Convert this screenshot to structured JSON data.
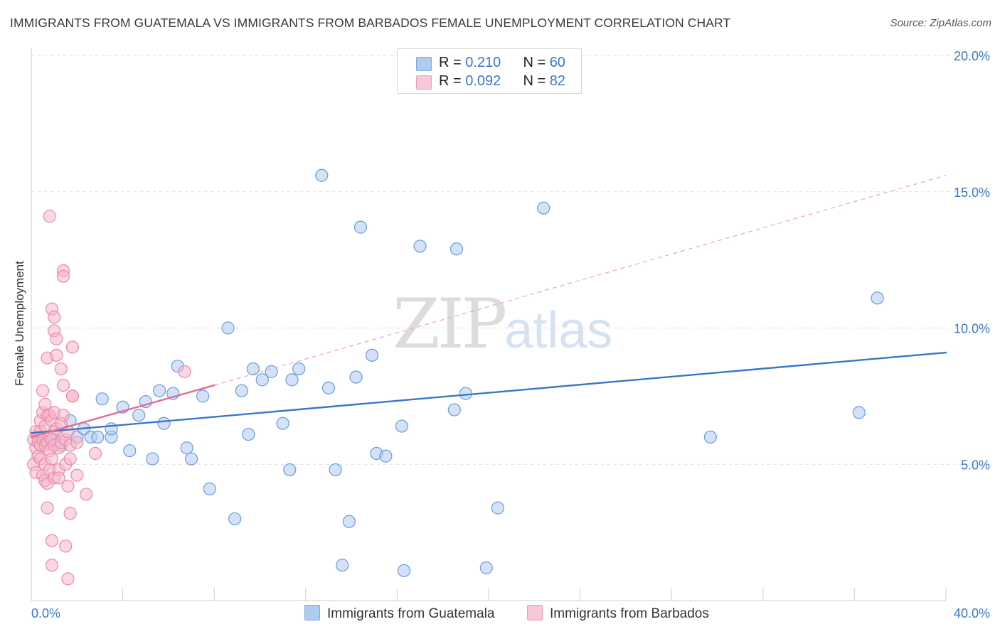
{
  "title": "IMMIGRANTS FROM GUATEMALA VS IMMIGRANTS FROM BARBADOS FEMALE UNEMPLOYMENT CORRELATION CHART",
  "source": "Source: ZipAtlas.com",
  "watermark": {
    "zip": "ZIP",
    "atlas": "atlas"
  },
  "colors": {
    "blue": "#3a77c8",
    "blue_fill": "#aecbf0",
    "pink": "#e86a93",
    "pink_fill": "#f5b7cb",
    "grid": "#dddddd"
  },
  "legend": {
    "rows": [
      {
        "r_label": "R = ",
        "r_value": "0.210",
        "n_label": "N = ",
        "n_value": "60"
      },
      {
        "r_label": "R = ",
        "r_value": "0.092",
        "n_label": "N = ",
        "n_value": "82"
      }
    ]
  },
  "chart_data": {
    "type": "scatter",
    "title": "IMMIGRANTS FROM GUATEMALA VS IMMIGRANTS FROM BARBADOS FEMALE UNEMPLOYMENT CORRELATION CHART",
    "xlabel": "",
    "ylabel": "Female Unemployment",
    "xlim": [
      0,
      40
    ],
    "ylim": [
      0,
      20
    ],
    "x_tick_labels": [
      "0.0%",
      "40.0%"
    ],
    "y_ticks": [
      5,
      10,
      15,
      20
    ],
    "y_tick_labels": [
      "5.0%",
      "10.0%",
      "15.0%",
      "20.0%"
    ],
    "series": [
      {
        "name": "Immigrants from Guatemala",
        "color": "blue",
        "r": 0.21,
        "n": 60,
        "trend": {
          "x0": 0,
          "y0": 6.15,
          "x1": 40,
          "y1": 9.1,
          "style": "solid"
        },
        "points": [
          [
            1.0,
            6.2
          ],
          [
            1.3,
            5.7
          ],
          [
            1.7,
            6.6
          ],
          [
            2.0,
            6.0
          ],
          [
            2.3,
            6.3
          ],
          [
            2.6,
            6.0
          ],
          [
            2.9,
            6.0
          ],
          [
            3.1,
            7.4
          ],
          [
            3.5,
            6.0
          ],
          [
            3.5,
            6.3
          ],
          [
            4.0,
            7.1
          ],
          [
            4.3,
            5.5
          ],
          [
            4.7,
            6.8
          ],
          [
            5.0,
            7.3
          ],
          [
            5.3,
            5.2
          ],
          [
            5.6,
            7.7
          ],
          [
            5.8,
            6.5
          ],
          [
            6.2,
            7.6
          ],
          [
            6.4,
            8.6
          ],
          [
            6.8,
            5.6
          ],
          [
            7.0,
            5.2
          ],
          [
            7.5,
            7.5
          ],
          [
            7.8,
            4.1
          ],
          [
            8.6,
            10.0
          ],
          [
            8.9,
            3.0
          ],
          [
            9.2,
            7.7
          ],
          [
            9.5,
            6.1
          ],
          [
            9.7,
            8.5
          ],
          [
            10.1,
            8.1
          ],
          [
            10.5,
            8.4
          ],
          [
            11.0,
            6.5
          ],
          [
            11.3,
            4.8
          ],
          [
            11.4,
            8.1
          ],
          [
            11.7,
            8.5
          ],
          [
            12.7,
            15.6
          ],
          [
            13.0,
            7.8
          ],
          [
            13.3,
            4.8
          ],
          [
            13.6,
            1.3
          ],
          [
            13.9,
            2.9
          ],
          [
            14.2,
            8.2
          ],
          [
            14.4,
            13.7
          ],
          [
            14.9,
            9.0
          ],
          [
            15.1,
            5.4
          ],
          [
            15.5,
            5.3
          ],
          [
            16.2,
            6.4
          ],
          [
            16.3,
            1.1
          ],
          [
            17.0,
            13.0
          ],
          [
            18.5,
            7.0
          ],
          [
            18.6,
            12.9
          ],
          [
            19.0,
            7.6
          ],
          [
            19.9,
            1.2
          ],
          [
            20.4,
            3.4
          ],
          [
            22.4,
            14.4
          ],
          [
            29.7,
            6.0
          ],
          [
            36.2,
            6.9
          ],
          [
            37.0,
            11.1
          ]
        ]
      },
      {
        "name": "Immigrants from Barbados",
        "color": "pink",
        "r": 0.092,
        "n": 82,
        "trend": {
          "x0": 0,
          "y0": 6.0,
          "x1": 8,
          "y1": 7.9,
          "style": "solid",
          "ext_x1": 40,
          "ext_y1": 15.6,
          "ext_style": "dashed"
        },
        "points": [
          [
            0.1,
            5.0
          ],
          [
            0.1,
            5.9
          ],
          [
            0.2,
            5.6
          ],
          [
            0.2,
            6.2
          ],
          [
            0.2,
            4.7
          ],
          [
            0.3,
            6.0
          ],
          [
            0.3,
            5.3
          ],
          [
            0.3,
            5.8
          ],
          [
            0.4,
            6.6
          ],
          [
            0.4,
            6.2
          ],
          [
            0.4,
            5.7
          ],
          [
            0.4,
            5.2
          ],
          [
            0.5,
            6.9
          ],
          [
            0.5,
            7.7
          ],
          [
            0.5,
            5.9
          ],
          [
            0.5,
            4.6
          ],
          [
            0.6,
            7.2
          ],
          [
            0.6,
            6.4
          ],
          [
            0.6,
            5.7
          ],
          [
            0.6,
            5.0
          ],
          [
            0.6,
            4.4
          ],
          [
            0.7,
            8.9
          ],
          [
            0.7,
            6.8
          ],
          [
            0.7,
            5.8
          ],
          [
            0.7,
            3.4
          ],
          [
            0.7,
            4.3
          ],
          [
            0.8,
            14.1
          ],
          [
            0.8,
            6.8
          ],
          [
            0.8,
            6.0
          ],
          [
            0.8,
            5.5
          ],
          [
            0.8,
            4.8
          ],
          [
            0.9,
            10.7
          ],
          [
            0.9,
            6.6
          ],
          [
            0.9,
            5.9
          ],
          [
            0.9,
            5.2
          ],
          [
            0.9,
            2.2
          ],
          [
            0.9,
            1.3
          ],
          [
            1.0,
            10.4
          ],
          [
            1.0,
            9.9
          ],
          [
            1.0,
            6.9
          ],
          [
            1.0,
            5.7
          ],
          [
            1.0,
            4.5
          ],
          [
            1.1,
            9.6
          ],
          [
            1.1,
            9.0
          ],
          [
            1.1,
            6.3
          ],
          [
            1.2,
            5.6
          ],
          [
            1.2,
            4.8
          ],
          [
            1.2,
            4.5
          ],
          [
            1.3,
            8.5
          ],
          [
            1.3,
            6.5
          ],
          [
            1.3,
            5.8
          ],
          [
            1.4,
            12.1
          ],
          [
            1.4,
            11.9
          ],
          [
            1.4,
            7.9
          ],
          [
            1.4,
            6.8
          ],
          [
            1.5,
            5.9
          ],
          [
            1.5,
            5.0
          ],
          [
            1.5,
            2.0
          ],
          [
            1.6,
            6.2
          ],
          [
            1.6,
            4.2
          ],
          [
            1.6,
            0.8
          ],
          [
            1.7,
            5.7
          ],
          [
            1.7,
            5.2
          ],
          [
            1.7,
            3.2
          ],
          [
            1.8,
            7.5
          ],
          [
            1.8,
            7.5
          ],
          [
            1.8,
            9.3
          ],
          [
            2.0,
            5.8
          ],
          [
            2.0,
            4.6
          ],
          [
            2.4,
            3.9
          ],
          [
            2.8,
            5.4
          ],
          [
            6.7,
            8.4
          ]
        ]
      }
    ]
  },
  "bottom_legend": {
    "items": [
      {
        "label": "Immigrants from Guatemala",
        "color": "blue"
      },
      {
        "label": "Immigrants from Barbados",
        "color": "pink"
      }
    ]
  }
}
